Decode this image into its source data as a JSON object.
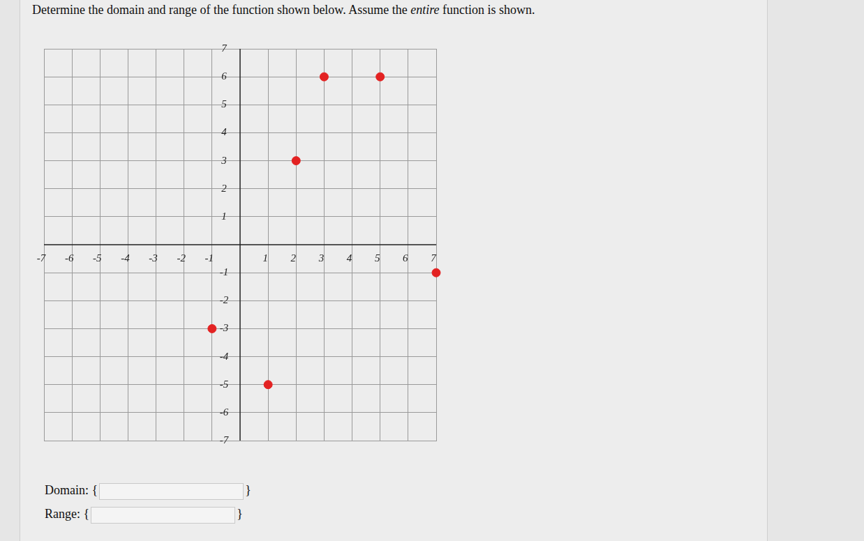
{
  "question": {
    "before": "Determine the domain and range of the function shown below. Assume the ",
    "emphasis": "entire",
    "after": " function is shown."
  },
  "answer_fields": [
    {
      "label": "Domain: {",
      "close": "}"
    },
    {
      "label": "Range: {",
      "close": "}"
    }
  ],
  "chart_data": {
    "type": "scatter",
    "x": [
      -1,
      1,
      2,
      3,
      5,
      7
    ],
    "values": [
      -3,
      -5,
      3,
      6,
      6,
      -1
    ],
    "color": "#e32222",
    "marker": "circle",
    "xlim": [
      -7,
      7
    ],
    "ylim": [
      -7,
      7
    ],
    "xticks": [
      -7,
      -6,
      -5,
      -4,
      -3,
      -2,
      -1,
      1,
      2,
      3,
      4,
      5,
      6,
      7
    ],
    "yticks": [
      -7,
      -6,
      -5,
      -4,
      -3,
      -2,
      -1,
      1,
      2,
      3,
      4,
      5,
      6,
      7
    ],
    "grid": true
  }
}
